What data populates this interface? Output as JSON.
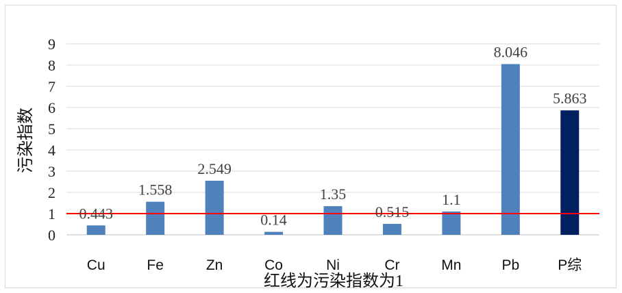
{
  "chart_data": {
    "type": "bar",
    "title": "",
    "xlabel": "红线为污染指数为1",
    "ylabel": "污染指数",
    "categories": [
      "Cu",
      "Fe",
      "Zn",
      "Co",
      "Ni",
      "Cr",
      "Mn",
      "Pb",
      "P综"
    ],
    "values": [
      0.443,
      1.558,
      2.549,
      0.14,
      1.35,
      0.515,
      1.1,
      8.046,
      5.863
    ],
    "data_labels": [
      "0.443",
      "1.558",
      "2.549",
      "0.14",
      "1.35",
      "0.515",
      "1.1",
      "8.046",
      "5.863"
    ],
    "yticks": [
      "0",
      "1",
      "2",
      "3",
      "4",
      "5",
      "6",
      "7",
      "8",
      "9"
    ],
    "ylim": [
      0,
      9
    ],
    "grid": true,
    "reference_line": {
      "value": 1,
      "color": "#ff0000"
    },
    "colors": {
      "bar": "#4f81bd",
      "highlight_bar": "#002060",
      "grid": "#d9d9d9"
    },
    "highlight_index": 8
  }
}
